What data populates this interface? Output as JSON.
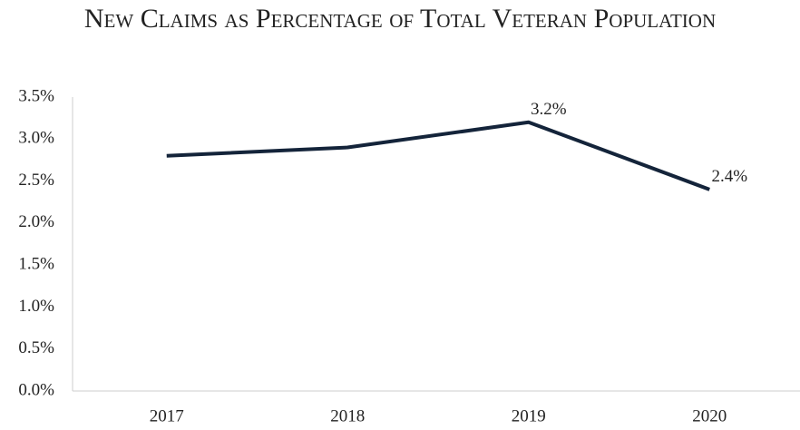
{
  "chart_data": {
    "type": "line",
    "title": "New Claims as Percentage of Total Veteran Population",
    "categories": [
      "2017",
      "2018",
      "2019",
      "2020"
    ],
    "series": [
      {
        "color": "#14243a",
        "values": [
          2.8,
          2.9,
          3.2,
          2.4
        ],
        "value_labels": [
          null,
          null,
          "3.2%",
          "2.4%"
        ]
      }
    ],
    "ylim": [
      0,
      3.5
    ],
    "yticks": [
      {
        "value": 0,
        "label": "0.0%"
      },
      {
        "value": 0.5,
        "label": "0.5%"
      },
      {
        "value": 1,
        "label": "1.0%"
      },
      {
        "value": 1.5,
        "label": "1.5%"
      },
      {
        "value": 2,
        "label": "2.0%"
      },
      {
        "value": 2.5,
        "label": "2.5%"
      },
      {
        "value": 3,
        "label": "3.0%"
      },
      {
        "value": 3.5,
        "label": "3.5%"
      }
    ],
    "grid": false
  }
}
